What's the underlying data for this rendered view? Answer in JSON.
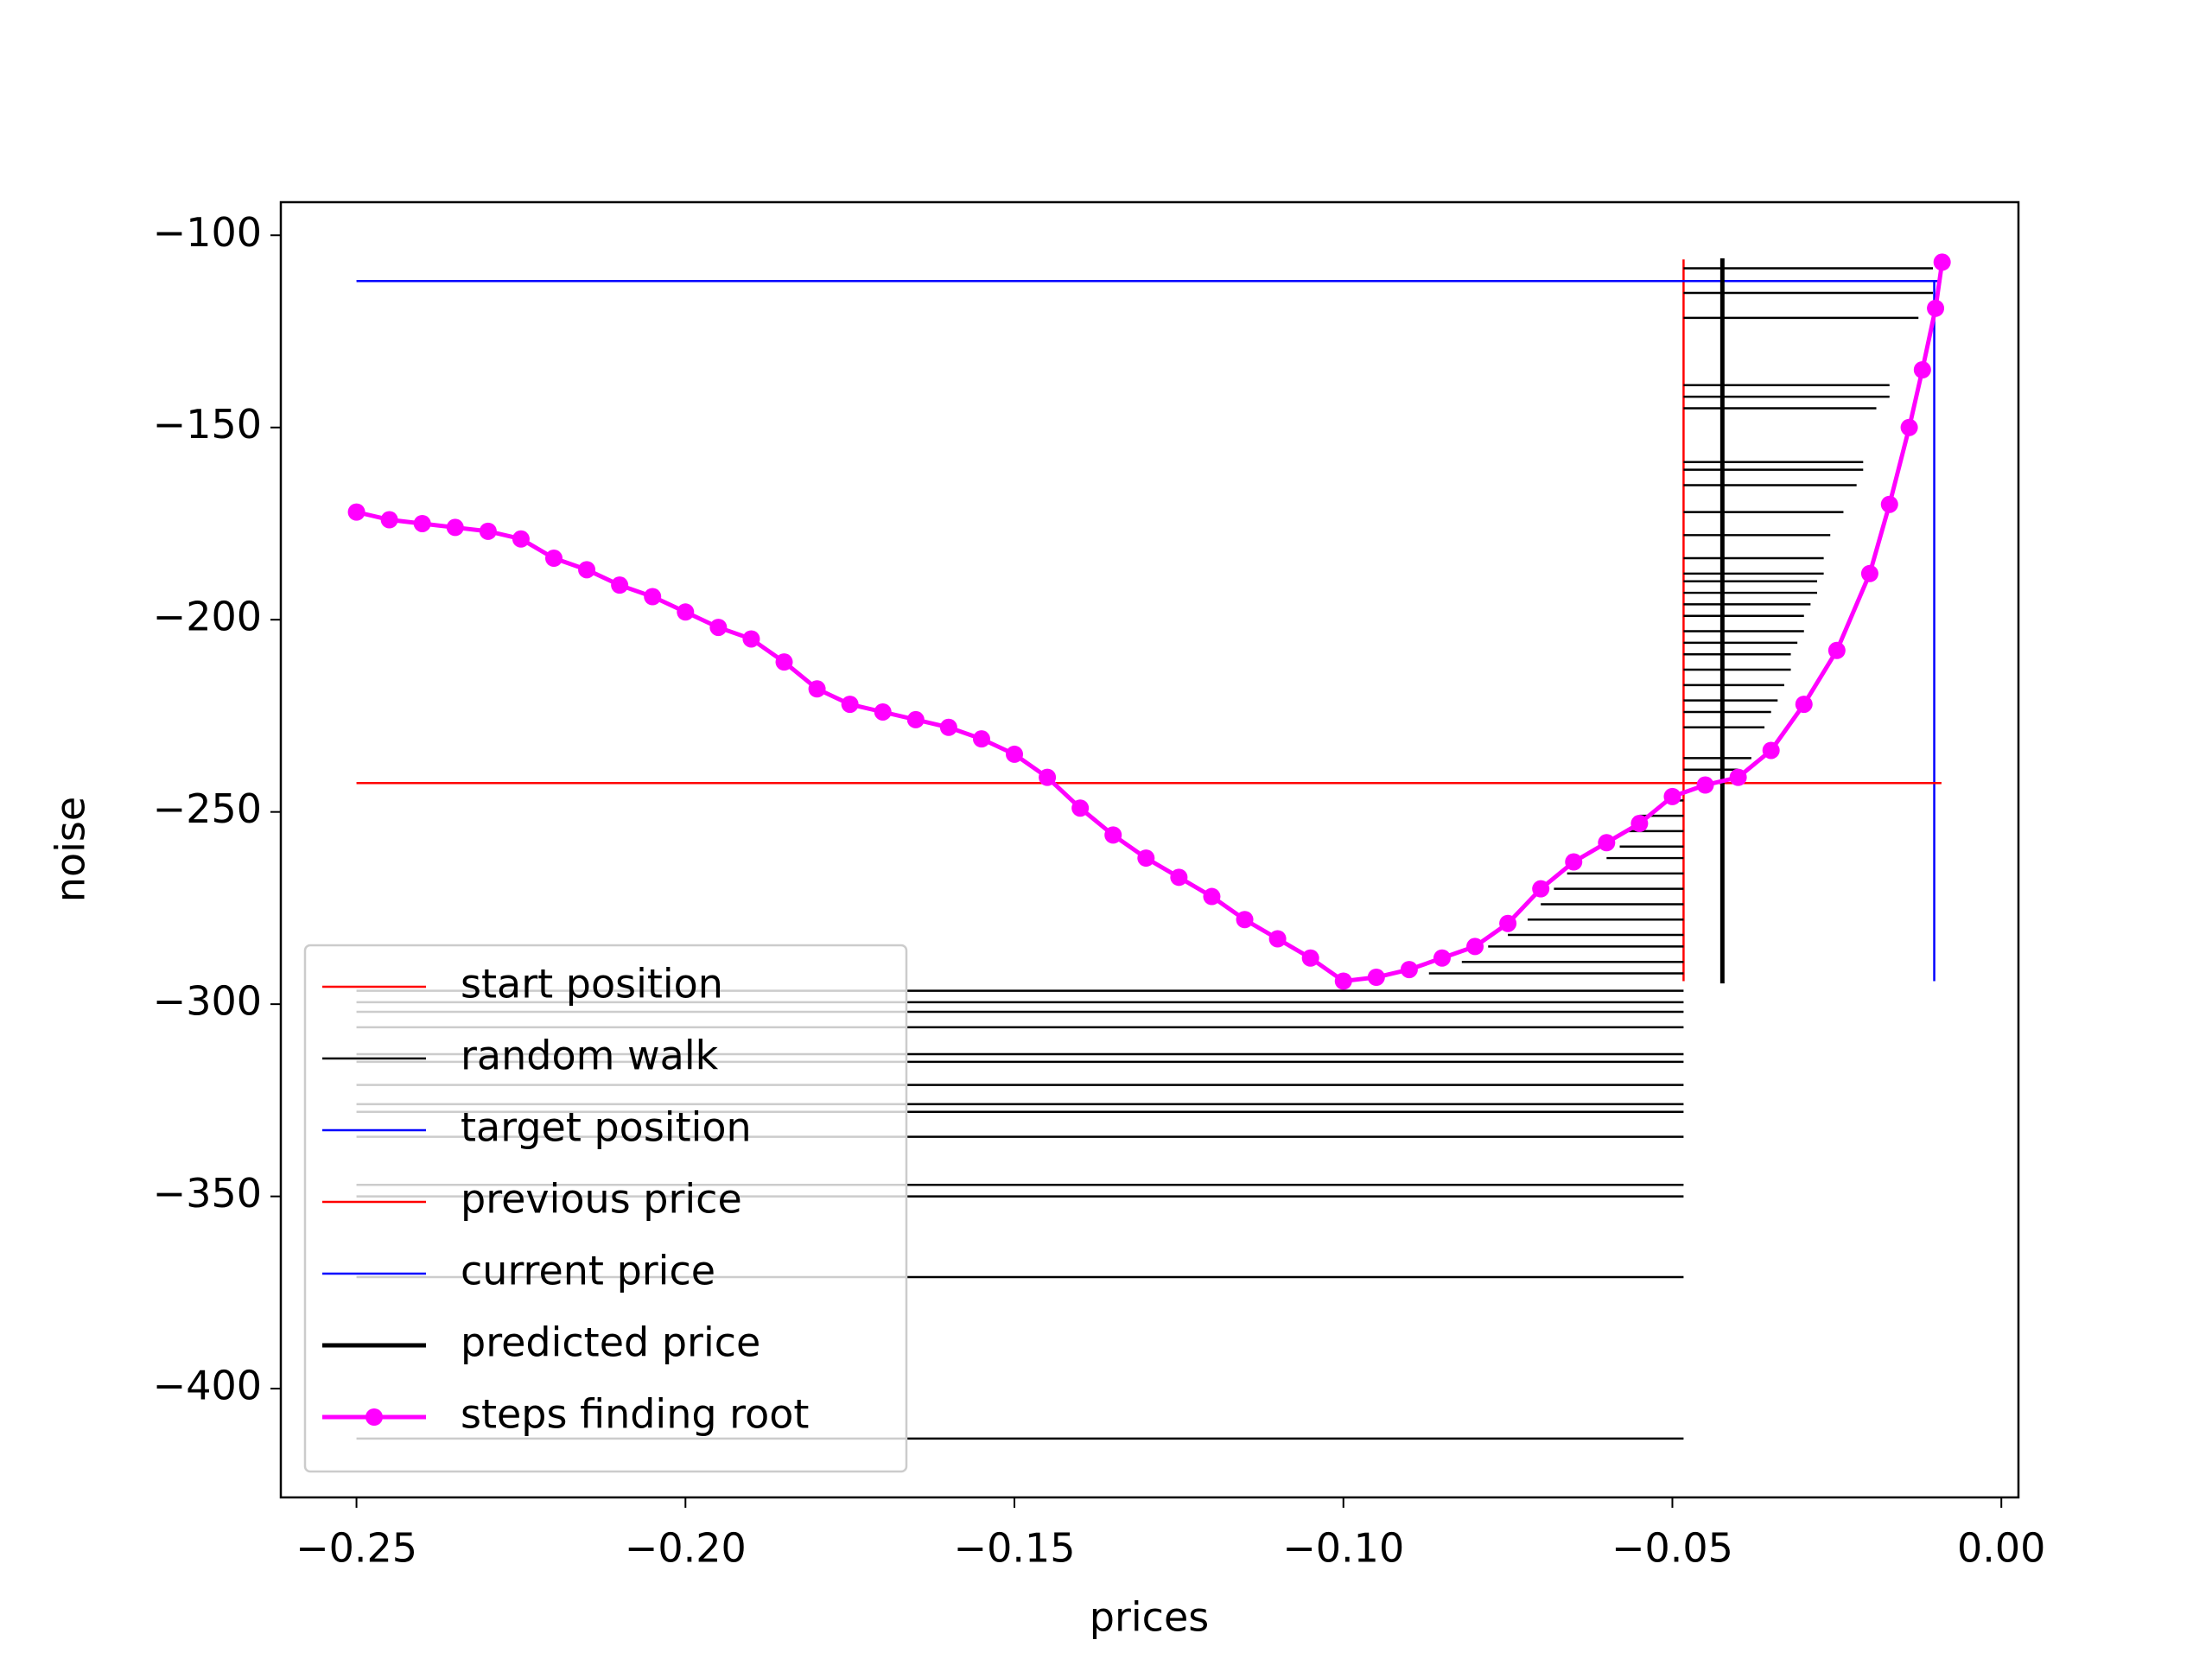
{
  "chart_data": {
    "type": "line",
    "xlabel": "prices",
    "ylabel": "noise",
    "xlim": [
      -0.2615,
      0.0026
    ],
    "ylim": [
      -428.3,
      -91.4
    ],
    "xticks": [
      {
        "value": -0.25,
        "label": "−0.25"
      },
      {
        "value": -0.2,
        "label": "−0.20"
      },
      {
        "value": -0.15,
        "label": "−0.15"
      },
      {
        "value": -0.1,
        "label": "−0.10"
      },
      {
        "value": -0.05,
        "label": "−0.05"
      },
      {
        "value": 0,
        "label": "0.00"
      }
    ],
    "yticks": [
      {
        "value": -100,
        "label": "−100"
      },
      {
        "value": -150,
        "label": "−150"
      },
      {
        "value": -200,
        "label": "−200"
      },
      {
        "value": -250,
        "label": "−250"
      },
      {
        "value": -300,
        "label": "−300"
      },
      {
        "value": -350,
        "label": "−350"
      },
      {
        "value": -400,
        "label": "−400"
      }
    ],
    "legend": "lower left",
    "series": [
      {
        "name": "start position",
        "color": "#ff0000",
        "style": "line",
        "linewidth": 1.5,
        "x": [
          -0.0483,
          -0.0483
        ],
        "y": [
          -106.3,
          -294
        ]
      },
      {
        "name": "random walk",
        "color": "#000000",
        "style": "hlines",
        "linewidth": 1.5,
        "x": [
          -0.0104,
          -0.0104,
          -0.0126,
          -0.017,
          -0.017,
          -0.019,
          -0.021,
          -0.021,
          -0.022,
          -0.024,
          -0.026,
          -0.027,
          -0.027,
          -0.028,
          -0.028,
          -0.029,
          -0.03,
          -0.03,
          -0.031,
          -0.032,
          -0.032,
          -0.033,
          -0.034,
          -0.035,
          -0.036,
          -0.038,
          -0.04,
          -0.051,
          -0.055,
          -0.057,
          -0.058,
          -0.06,
          -0.066,
          -0.068,
          -0.07,
          -0.072,
          -0.075,
          -0.078,
          -0.082,
          -0.087,
          -0.25,
          -0.25,
          -0.25,
          -0.25,
          -0.25,
          -0.25,
          -0.25,
          -0.25,
          -0.25,
          -0.25,
          -0.25,
          -0.25,
          -0.25,
          -0.25
        ],
        "y": [
          -108.6,
          -115,
          -121.5,
          -139,
          -142,
          -145,
          -159,
          -161,
          -165,
          -172,
          -178,
          -184,
          -188,
          -190,
          -193,
          -196,
          -199,
          -203,
          -206,
          -209,
          -213,
          -217,
          -221,
          -224,
          -228,
          -236,
          -239,
          -247,
          -251,
          -255,
          -259,
          -262,
          -266,
          -270,
          -274,
          -278,
          -282,
          -285,
          -289,
          -292,
          -296.5,
          -299.5,
          -302,
          -306,
          -313,
          -315,
          -321,
          -326,
          -328,
          -334.5,
          -347,
          -350,
          -371,
          -413
        ]
      },
      {
        "name": "target position",
        "color": "#0000ff",
        "style": "line",
        "linewidth": 1.5,
        "x": [
          -0.0102,
          -0.0102
        ],
        "y": [
          -111.9,
          -294
        ]
      },
      {
        "name": "previous price",
        "color": "#ff0000",
        "style": "line",
        "linewidth": 1.5,
        "x": [
          -0.25,
          -0.0091
        ],
        "y": [
          -242.5,
          -242.5
        ]
      },
      {
        "name": "current price",
        "color": "#0000ff",
        "style": "line",
        "linewidth": 1.5,
        "x": [
          -0.25,
          -0.0091
        ],
        "y": [
          -111.9,
          -111.9
        ]
      },
      {
        "name": "predicted price",
        "color": "#000000",
        "style": "line",
        "linewidth": 3,
        "x": [
          -0.0424,
          -0.0424
        ],
        "y": [
          -106,
          -294.6
        ]
      },
      {
        "name": "steps finding root",
        "color": "#ff00ff",
        "style": "markers",
        "linewidth": 3,
        "x": [
          -0.25,
          -0.245,
          -0.24,
          -0.235,
          -0.23,
          -0.225,
          -0.22,
          -0.215,
          -0.21,
          -0.205,
          -0.2,
          -0.195,
          -0.19,
          -0.185,
          -0.18,
          -0.175,
          -0.17,
          -0.165,
          -0.16,
          -0.155,
          -0.15,
          -0.145,
          -0.14,
          -0.135,
          -0.13,
          -0.125,
          -0.12,
          -0.115,
          -0.11,
          -0.105,
          -0.1,
          -0.095,
          -0.09,
          -0.085,
          -0.08,
          -0.075,
          -0.07,
          -0.065,
          -0.06,
          -0.055,
          -0.05,
          -0.045,
          -0.04,
          -0.035,
          -0.03,
          -0.025,
          -0.02,
          -0.017,
          -0.014,
          -0.012,
          -0.01,
          -0.009
        ],
        "y": [
          -172,
          -174,
          -175,
          -176,
          -177,
          -179,
          -184,
          -187,
          -191,
          -194,
          -198,
          -202,
          -205,
          -211,
          -218,
          -222,
          -224,
          -226,
          -228,
          -231,
          -235,
          -241,
          -249,
          -256,
          -262,
          -267,
          -272,
          -278,
          -283,
          -288,
          -294,
          -293,
          -291,
          -288,
          -285,
          -279,
          -270,
          -263,
          -258,
          -253,
          -246,
          -243,
          -241,
          -234,
          -222,
          -208,
          -188,
          -170,
          -150,
          -135,
          -119,
          -107
        ]
      }
    ]
  }
}
